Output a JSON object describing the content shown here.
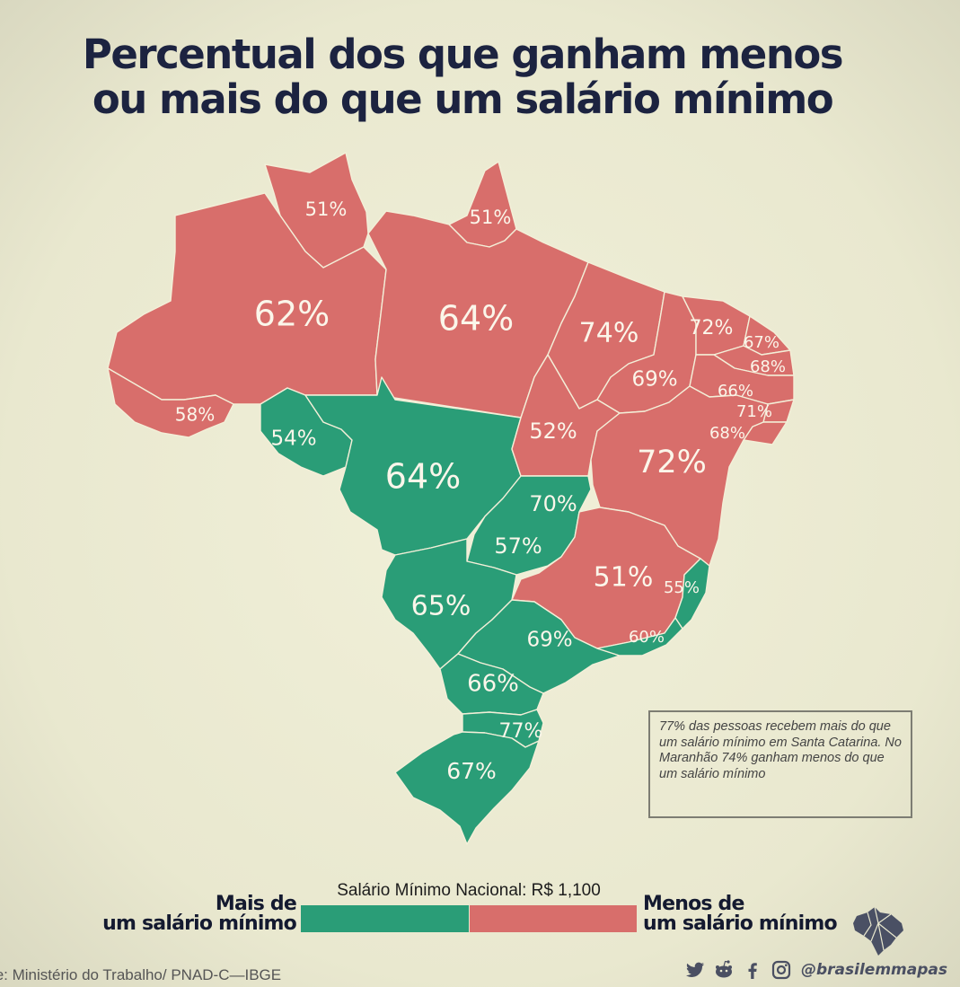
{
  "title": {
    "line1": "Percentual dos que ganham menos",
    "line2": "ou mais do que um salário mínimo"
  },
  "colors": {
    "more_than_minimum": "#2a9d77",
    "less_than_minimum": "#d86e6b",
    "title": "#1c2340"
  },
  "map": {
    "states": [
      {
        "id": "RR",
        "label": "51%",
        "group": "less"
      },
      {
        "id": "AP",
        "label": "51%",
        "group": "less"
      },
      {
        "id": "AM",
        "label": "62%",
        "group": "less"
      },
      {
        "id": "PA",
        "label": "64%",
        "group": "less"
      },
      {
        "id": "AC",
        "label": "58%",
        "group": "less"
      },
      {
        "id": "RO",
        "label": "54%",
        "group": "more"
      },
      {
        "id": "MT",
        "label": "64%",
        "group": "more"
      },
      {
        "id": "MA",
        "label": "74%",
        "group": "less"
      },
      {
        "id": "PI",
        "label": "69%",
        "group": "less"
      },
      {
        "id": "CE",
        "label": "72%",
        "group": "less"
      },
      {
        "id": "RN",
        "label": "67%",
        "group": "less"
      },
      {
        "id": "PB",
        "label": "68%",
        "group": "less"
      },
      {
        "id": "PE",
        "label": "66%",
        "group": "less"
      },
      {
        "id": "AL",
        "label": "71%",
        "group": "less"
      },
      {
        "id": "SE",
        "label": "68%",
        "group": "less"
      },
      {
        "id": "TO",
        "label": "52%",
        "group": "less"
      },
      {
        "id": "BA",
        "label": "72%",
        "group": "less"
      },
      {
        "id": "DF",
        "label": "70%",
        "group": "more"
      },
      {
        "id": "GO",
        "label": "57%",
        "group": "more"
      },
      {
        "id": "MG",
        "label": "51%",
        "group": "less"
      },
      {
        "id": "ES",
        "label": "55%",
        "group": "more"
      },
      {
        "id": "MS",
        "label": "65%",
        "group": "more"
      },
      {
        "id": "SP",
        "label": "69%",
        "group": "more"
      },
      {
        "id": "RJ",
        "label": "60%",
        "group": "more"
      },
      {
        "id": "PR",
        "label": "66%",
        "group": "more"
      },
      {
        "id": "SC",
        "label": "77%",
        "group": "more"
      },
      {
        "id": "RS",
        "label": "67%",
        "group": "more"
      }
    ]
  },
  "note": "77% das pessoas recebem mais do que um salário mínimo em Santa Catarina. No Maranhão 74% ganham menos do que um salário mínimo",
  "legend": {
    "caption": "Salário Mínimo Nacional: R$ 1,100",
    "more_label_line1": "Mais de",
    "more_label_line2": "um salário mínimo",
    "less_label_line1": "Menos de",
    "less_label_line2": "um salário mínimo"
  },
  "source": "te: Ministério do Trabalho/ PNAD-C—IBGE",
  "social": {
    "icons": [
      "twitter-icon",
      "reddit-icon",
      "facebook-icon",
      "instagram-icon"
    ],
    "handle": "@brasilemmapas"
  }
}
